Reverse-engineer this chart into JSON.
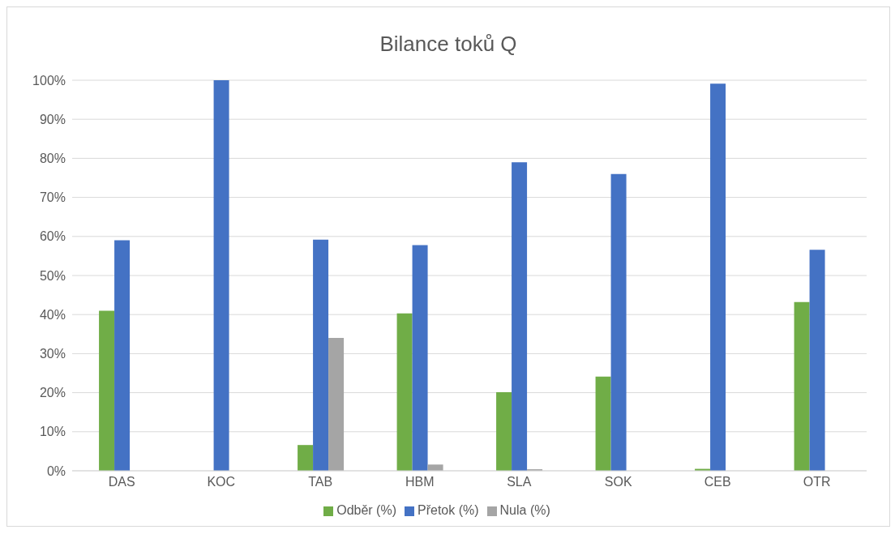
{
  "chart_data": {
    "type": "bar",
    "title": "Bilance toků Q",
    "categories": [
      "DAS",
      "KOC",
      "TAB",
      "HBM",
      "SLA",
      "SOK",
      "CEB",
      "OTR"
    ],
    "series": [
      {
        "name": "Odběr (%)",
        "color": "#70ad47",
        "values": [
          41,
          0,
          6.6,
          40.3,
          20.1,
          24.1,
          0.5,
          43.2
        ]
      },
      {
        "name": "Přetok (%)",
        "color": "#4472c4",
        "values": [
          59,
          100,
          59.2,
          57.8,
          79,
          76,
          99.1,
          56.6
        ]
      },
      {
        "name": "Nula (%)",
        "color": "#a5a5a5",
        "values": [
          0,
          0,
          34,
          1.6,
          0.4,
          0,
          0,
          0
        ]
      }
    ],
    "ylim": [
      0,
      100
    ],
    "yticks": [
      {
        "value": 0,
        "label": "0%"
      },
      {
        "value": 10,
        "label": "10%"
      },
      {
        "value": 20,
        "label": "20%"
      },
      {
        "value": 30,
        "label": "30%"
      },
      {
        "value": 40,
        "label": "40%"
      },
      {
        "value": 50,
        "label": "50%"
      },
      {
        "value": 60,
        "label": "60%"
      },
      {
        "value": 70,
        "label": "70%"
      },
      {
        "value": 80,
        "label": "80%"
      },
      {
        "value": 90,
        "label": "90%"
      },
      {
        "value": 100,
        "label": "100%"
      }
    ],
    "grid": "y",
    "legend": "bottom"
  }
}
